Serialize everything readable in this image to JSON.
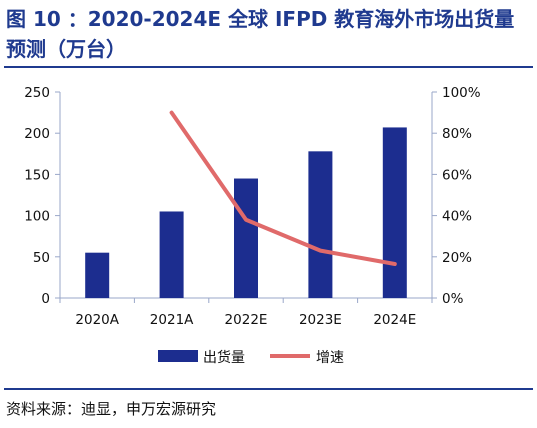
{
  "title": "图 10 ：2020-2024E 全球 IFPD 教育海外市场出货量预测（万台）",
  "source": "资料来源：迪显，申万宏源研究",
  "colors": {
    "brand": "#1f3a8f",
    "bar": "#1c2d8f",
    "line": "#e06a6a",
    "axis": "#9aa7c9"
  },
  "chart_data": {
    "type": "bar",
    "categories": [
      "2020A",
      "2021A",
      "2022E",
      "2023E",
      "2024E"
    ],
    "series": [
      {
        "name": "出货量",
        "type": "bar",
        "axis": "left",
        "values": [
          55,
          105,
          145,
          178,
          207
        ]
      },
      {
        "name": "增速",
        "type": "line",
        "axis": "right",
        "values": [
          null,
          0.9,
          0.38,
          0.23,
          0.165
        ]
      }
    ],
    "ylim": [
      0,
      250
    ],
    "yticks": [
      "0",
      "50",
      "100",
      "150",
      "200",
      "250"
    ],
    "y2lim": [
      0,
      1.0
    ],
    "y2ticks": [
      "0%",
      "20%",
      "40%",
      "60%",
      "80%",
      "100%"
    ],
    "grid": false,
    "legend": "bottom"
  }
}
